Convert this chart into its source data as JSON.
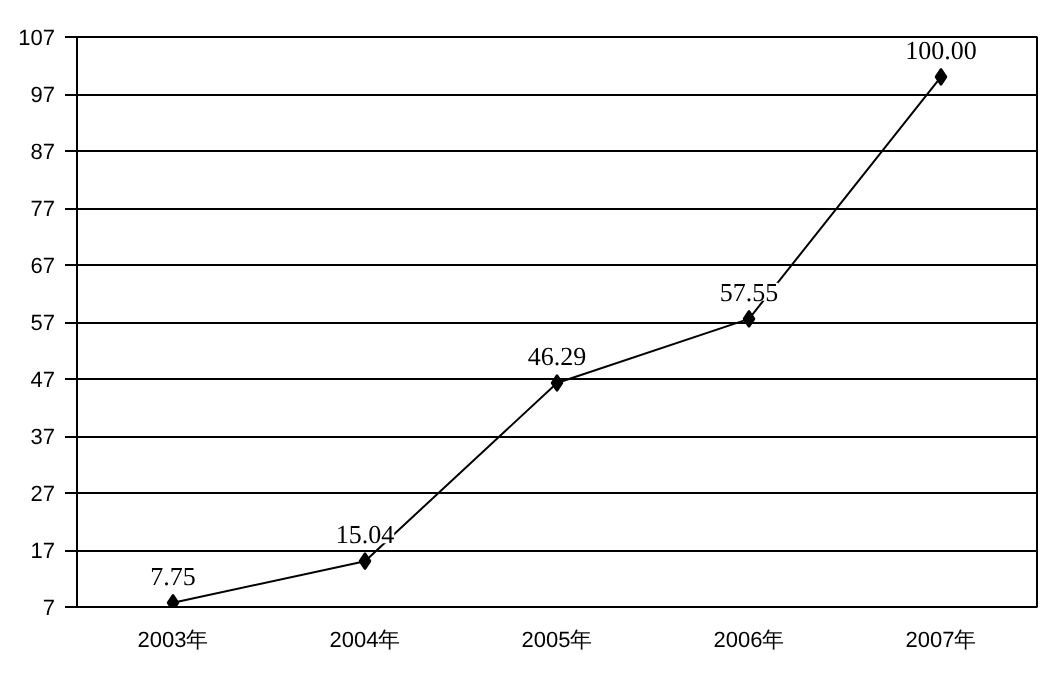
{
  "chart_data": {
    "type": "line",
    "categories": [
      "2003年",
      "2004年",
      "2005年",
      "2006年",
      "2007年"
    ],
    "series": [
      {
        "color": "#000000",
        "values": [
          7.75,
          15.04,
          46.29,
          57.55,
          100
        ],
        "value_labels": [
          "7.75",
          "15.04",
          "46.29",
          "57.55",
          "100.00"
        ]
      }
    ],
    "ylim": [
      7,
      107
    ],
    "yticks": [
      7,
      17,
      27,
      37,
      47,
      57,
      67,
      77,
      87,
      97,
      107
    ],
    "grid": "y",
    "marker": "diamond",
    "line_style": "solid"
  }
}
